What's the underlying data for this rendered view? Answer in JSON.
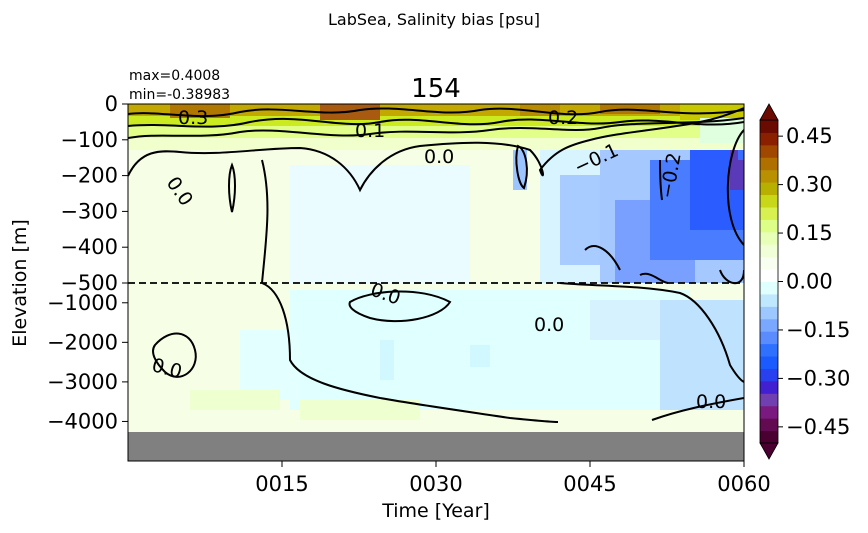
{
  "chart_data": {
    "type": "heatmap",
    "suptitle": "LabSea, Salinity bias [psu]",
    "title": "154",
    "stats": {
      "max": "max=0.4008",
      "min": "min=-0.38983"
    },
    "xlabel": "Time [Year]",
    "ylabel": "Elevation [m]",
    "x_ticks": [
      "0015",
      "0030",
      "0045",
      "0060"
    ],
    "x_tick_values": [
      15,
      30,
      45,
      60
    ],
    "xlim": [
      0,
      60
    ],
    "y_ticks_upper": [
      "0",
      "−100",
      "−200",
      "−300",
      "−400",
      "−500"
    ],
    "y_tick_values_upper": [
      0,
      -100,
      -200,
      -300,
      -400,
      -500
    ],
    "y_ticks_lower": [
      "−1000",
      "−2000",
      "−3000",
      "−4000"
    ],
    "y_tick_values_lower": [
      -1000,
      -2000,
      -3000,
      -4000
    ],
    "upper_ylim": [
      -500,
      0
    ],
    "lower_ylim": [
      -5000,
      -500
    ],
    "split_depth": -500,
    "split_line": "dashed",
    "land_color": "#808080",
    "bottom_depth": -4250,
    "colorbar": {
      "ticks": [
        "0.45",
        "0.30",
        "0.15",
        "0.00",
        "−0.15",
        "−0.30",
        "−0.45"
      ],
      "tick_values": [
        0.45,
        0.3,
        0.15,
        0.0,
        -0.15,
        -0.3,
        -0.45
      ],
      "range": [
        -0.5,
        0.5
      ],
      "extend": "both",
      "colors": [
        "#4a0030",
        "#620a52",
        "#7a1a80",
        "#7040b0",
        "#4020d0",
        "#2840f0",
        "#1a5aff",
        "#3070ff",
        "#5a8cff",
        "#7aa8ff",
        "#9cc8ff",
        "#bfe8ff",
        "#e0ffff",
        "#ffffff",
        "#f8fff0",
        "#f0ffd8",
        "#e8ffb8",
        "#ddff88",
        "#d8f050",
        "#c8d818",
        "#b8b000",
        "#b89000",
        "#b07000",
        "#a04800",
        "#8a2000",
        "#6a0a00"
      ]
    },
    "contour_labels": [
      {
        "text": "0.3"
      },
      {
        "text": "0.1"
      },
      {
        "text": "0.2"
      },
      {
        "text": "0.0"
      },
      {
        "text": "−0.1"
      },
      {
        "text": "−0.2"
      },
      {
        "text": "0.0"
      },
      {
        "text": "0.0"
      },
      {
        "text": "0.0"
      },
      {
        "text": "0.0"
      },
      {
        "text": "0.0"
      }
    ]
  }
}
